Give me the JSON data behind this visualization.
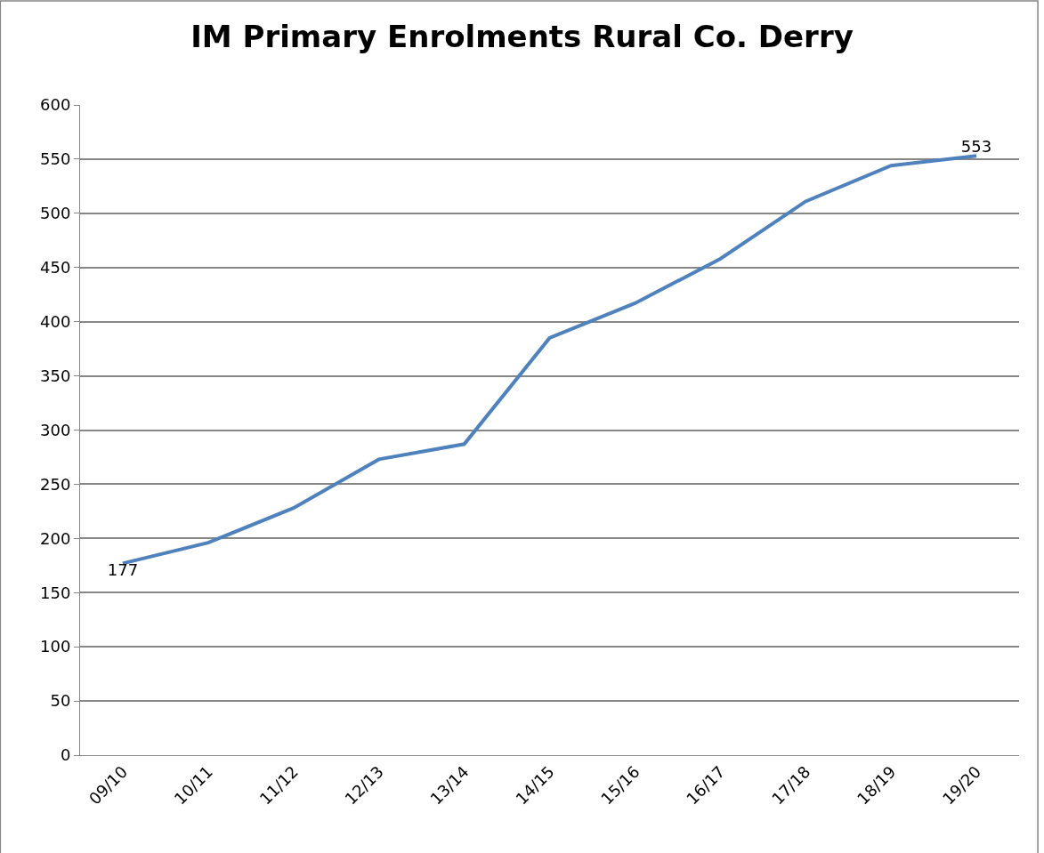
{
  "chart_data": {
    "type": "line",
    "title": "IM Primary Enrolments Rural Co. Derry",
    "categories": [
      "09/10",
      "10/11",
      "11/12",
      "12/13",
      "13/14",
      "14/15",
      "15/16",
      "16/17",
      "17/18",
      "18/19",
      "19/20"
    ],
    "series": [
      {
        "color": "#4f81bd",
        "values": [
          177,
          196,
          228,
          273,
          287,
          385,
          417,
          458,
          511,
          544,
          553
        ],
        "value_labels": [
          "177",
          null,
          null,
          null,
          null,
          null,
          null,
          null,
          null,
          null,
          "553"
        ]
      }
    ],
    "ylim": [
      0,
      600
    ],
    "yticks": [
      0,
      50,
      100,
      150,
      200,
      250,
      300,
      350,
      400,
      450,
      500,
      550,
      600
    ],
    "grid": "y",
    "marker": "none",
    "line_style": "solid"
  }
}
